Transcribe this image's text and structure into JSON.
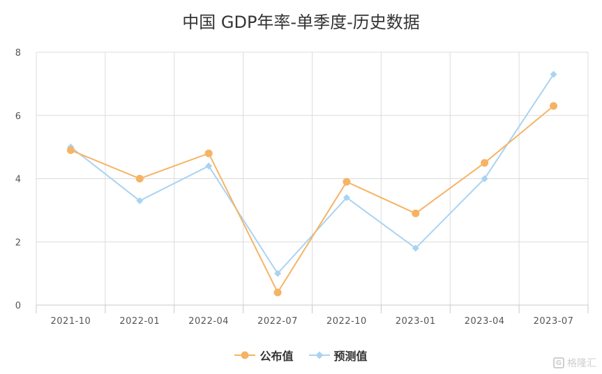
{
  "chart_data": {
    "type": "line",
    "title": "中国 GDP年率-单季度-历史数据",
    "categories": [
      "2021-10",
      "2022-01",
      "2022-04",
      "2022-07",
      "2022-10",
      "2023-01",
      "2023-04",
      "2023-07"
    ],
    "ylim": [
      0,
      8
    ],
    "yticks": [
      "0",
      "2",
      "4",
      "6",
      "8"
    ],
    "grid": true,
    "legend_position": "bottom",
    "series": [
      {
        "name": "公布值",
        "values": [
          4.9,
          4.0,
          4.8,
          0.4,
          3.9,
          2.9,
          4.5,
          6.3
        ],
        "color": "#f5b465",
        "marker": "circle"
      },
      {
        "name": "预测值",
        "values": [
          5.0,
          3.3,
          4.4,
          1.0,
          3.4,
          1.8,
          4.0,
          7.3
        ],
        "color": "#a9d3f2",
        "marker": "diamond"
      }
    ]
  },
  "watermark": {
    "icon": "gelonghui-logo-icon",
    "text": "格隆汇"
  }
}
